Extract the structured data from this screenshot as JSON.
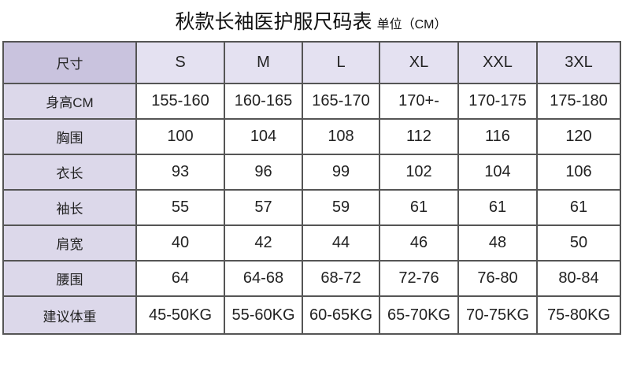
{
  "title": "秋款长袖医护服尺码表",
  "unit": "单位（CM）",
  "table": {
    "header": [
      "尺寸",
      "S",
      "M",
      "L",
      "XL",
      "XXL",
      "3XL"
    ],
    "rows": [
      [
        "身高CM",
        "155-160",
        "160-165",
        "165-170",
        "170+-",
        "170-175",
        "175-180"
      ],
      [
        "胸围",
        "100",
        "104",
        "108",
        "112",
        "116",
        "120"
      ],
      [
        "衣长",
        "93",
        "96",
        "99",
        "102",
        "104",
        "106"
      ],
      [
        "袖长",
        "55",
        "57",
        "59",
        "61",
        "61",
        "61"
      ],
      [
        "肩宽",
        "40",
        "42",
        "44",
        "46",
        "48",
        "50"
      ],
      [
        "腰围",
        "64",
        "64-68",
        "68-72",
        "72-76",
        "76-80",
        "80-84"
      ],
      [
        "建议体重",
        "45-50KG",
        "55-60KG",
        "60-65KG",
        "65-70KG",
        "70-75KG",
        "75-80KG"
      ]
    ]
  }
}
